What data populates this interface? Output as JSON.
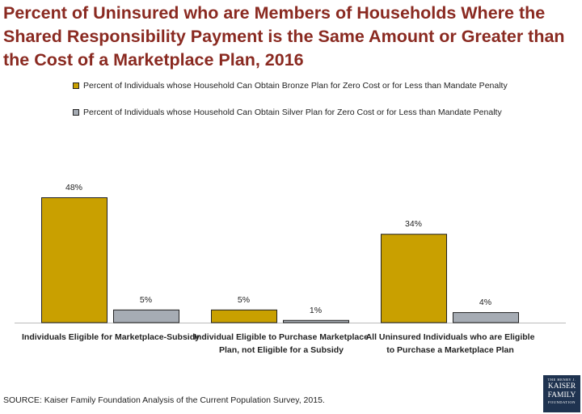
{
  "chart_data": {
    "type": "bar",
    "title": "Percent of Uninsured who are Members of Households Where the Shared Responsibility Payment is the Same Amount or Greater than the Cost of a Marketplace Plan, 2016",
    "categories": [
      "Individuals Eligible for Marketplace-Subsidy",
      "Individual Eligible to Purchase Marketplace Plan, not Eligible for a Subsidy",
      "All Uninsured Individuals who are Eligible to Purchase  a Marketplace Plan"
    ],
    "series": [
      {
        "name": "Percent of Individuals whose Household Can Obtain Bronze Plan for Zero Cost or for Less than Mandate Penalty",
        "values": [
          48,
          5,
          34
        ],
        "labels": [
          "48%",
          "5%",
          "34%"
        ],
        "color": "#c9a000"
      },
      {
        "name": "Percent of Individuals whose Household Can Obtain Silver Plan for Zero Cost or for Less than Mandate Penalty",
        "values": [
          5,
          1,
          4
        ],
        "labels": [
          "5%",
          "1%",
          "4%"
        ],
        "color": "#a6acb4"
      }
    ],
    "xlabel": "",
    "ylabel": "",
    "ylim": [
      0,
      50
    ],
    "grid": false,
    "legend_position": "top"
  },
  "source_text": "SOURCE:  Kaiser Family Foundation Analysis of the Current Population Survey, 2015.",
  "logo": {
    "line1": "THE HENRY J.",
    "line2": "KAISER",
    "line3": "FAMILY",
    "line4": "FOUNDATION"
  }
}
